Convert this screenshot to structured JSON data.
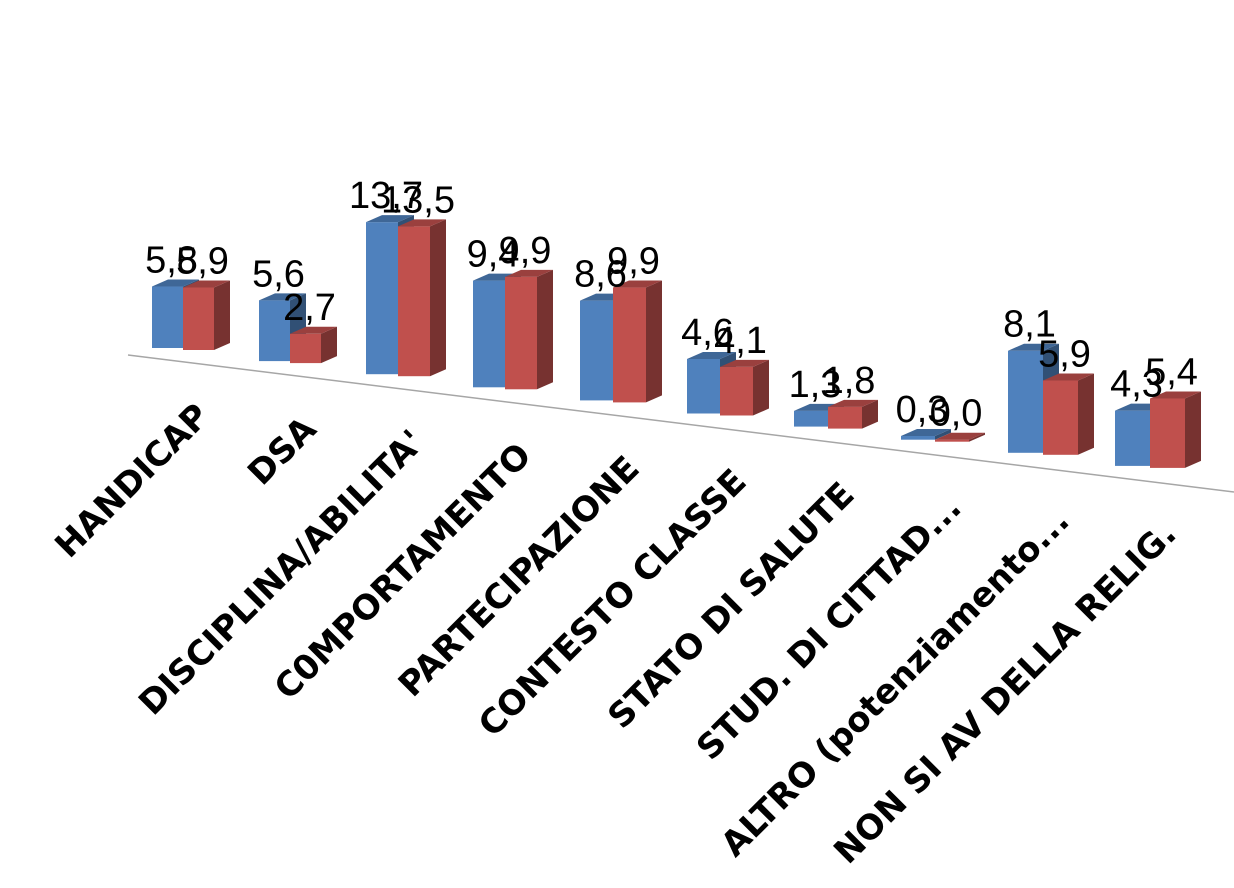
{
  "chart_data": {
    "type": "bar",
    "subtype": "3d-clustered-column",
    "title": "",
    "xlabel": "",
    "ylabel": "",
    "ylim": [
      0,
      14
    ],
    "grid": false,
    "legend": "none",
    "categories": [
      "HANDICAP",
      "DSA",
      "DISCIPLINA/ABILITA'",
      "C0MPORTAMENTO",
      "PARTECIPAZIONE",
      "CONTESTO CLASSE",
      "STATO DI SALUTE",
      "STUD. DI CITTAD...",
      "ALTRO (potenziamento...",
      "NON SI AV DELLA RELIG."
    ],
    "series": [
      {
        "color": "#4F81BD",
        "values": [
          5.8,
          5.6,
          13.7,
          9.4,
          8.6,
          4.6,
          1.3,
          0.3,
          8.1,
          4.3
        ],
        "labels": [
          "5,8",
          "5,6",
          "13,7",
          "9,4",
          "8,6",
          "4,6",
          "1,3",
          "0,3",
          "8,1",
          "4,3"
        ]
      },
      {
        "color": "#C0504D",
        "values": [
          5.9,
          2.7,
          13.5,
          9.9,
          9.9,
          4.1,
          1.8,
          0.0,
          5.9,
          5.4
        ],
        "labels": [
          "5,9",
          "2,7",
          "13,5",
          "9,9",
          "9,9",
          "4,1",
          "1,8",
          "0,0",
          "5,9",
          "5,4"
        ]
      }
    ]
  }
}
